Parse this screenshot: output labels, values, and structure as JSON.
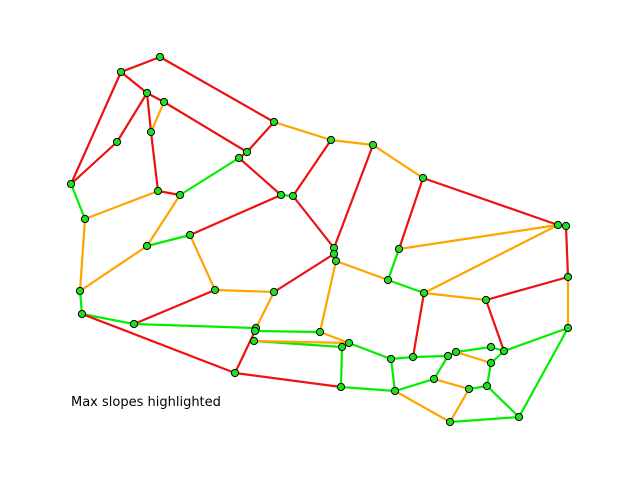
{
  "caption": "Max slopes highlighted",
  "colors": {
    "red": "#ee1111",
    "orange": "#ffa500",
    "green": "#00ee00",
    "node_fill": "#22dd22",
    "node_stroke": "#000000",
    "background": "#ffffff"
  },
  "graph": {
    "nodes": [
      [
        "A",
        160,
        57
      ],
      [
        "B",
        121,
        72
      ],
      [
        "C",
        147,
        93
      ],
      [
        "D",
        164,
        102
      ],
      [
        "E",
        151,
        132
      ],
      [
        "F",
        117,
        142
      ],
      [
        "G",
        71,
        184
      ],
      [
        "H",
        158,
        191
      ],
      [
        "I",
        180,
        195
      ],
      [
        "J",
        85,
        219
      ],
      [
        "K",
        274,
        122
      ],
      [
        "L",
        247,
        152
      ],
      [
        "M",
        239,
        158
      ],
      [
        "N",
        281,
        195
      ],
      [
        "O",
        293,
        196
      ],
      [
        "P",
        331,
        140
      ],
      [
        "Q",
        373,
        145
      ],
      [
        "R",
        423,
        178
      ],
      [
        "S",
        190,
        235
      ],
      [
        "T",
        147,
        246
      ],
      [
        "U",
        334,
        248
      ],
      [
        "V",
        334,
        254
      ],
      [
        "W",
        336,
        261
      ],
      [
        "X",
        399,
        249
      ],
      [
        "Y",
        388,
        280
      ],
      [
        "Z",
        558,
        225
      ],
      [
        "AA",
        566,
        226
      ],
      [
        "AB",
        568,
        277
      ],
      [
        "AC",
        424,
        293
      ],
      [
        "AD",
        486,
        300
      ],
      [
        "AE",
        80,
        291
      ],
      [
        "AF",
        82,
        314
      ],
      [
        "AG",
        215,
        290
      ],
      [
        "AH",
        274,
        292
      ],
      [
        "AI",
        134,
        324
      ],
      [
        "AJ",
        256,
        328
      ],
      [
        "AK",
        255,
        331
      ],
      [
        "AL",
        320,
        332
      ],
      [
        "AM",
        254,
        341
      ],
      [
        "AN",
        342,
        347
      ],
      [
        "AO",
        349,
        343
      ],
      [
        "AP",
        391,
        359
      ],
      [
        "AQ",
        413,
        357
      ],
      [
        "AR",
        448,
        356
      ],
      [
        "AS",
        456,
        352
      ],
      [
        "AT",
        491,
        347
      ],
      [
        "AU",
        504,
        351
      ],
      [
        "AV",
        491,
        363
      ],
      [
        "AW",
        568,
        328
      ],
      [
        "AX",
        235,
        373
      ],
      [
        "AY",
        341,
        387
      ],
      [
        "AZ",
        395,
        391
      ],
      [
        "BA",
        434,
        379
      ],
      [
        "BB",
        469,
        389
      ],
      [
        "BC",
        487,
        386
      ],
      [
        "BD",
        450,
        422
      ],
      [
        "BE",
        519,
        417
      ]
    ],
    "edges": [
      [
        "A",
        "B",
        "red"
      ],
      [
        "A",
        "K",
        "red"
      ],
      [
        "B",
        "C",
        "red"
      ],
      [
        "B",
        "G",
        "red"
      ],
      [
        "C",
        "D",
        "red"
      ],
      [
        "C",
        "E",
        "red"
      ],
      [
        "C",
        "F",
        "red"
      ],
      [
        "D",
        "E",
        "orange"
      ],
      [
        "D",
        "L",
        "red"
      ],
      [
        "E",
        "H",
        "red"
      ],
      [
        "F",
        "G",
        "red"
      ],
      [
        "G",
        "J",
        "green"
      ],
      [
        "H",
        "I",
        "red"
      ],
      [
        "I",
        "T",
        "orange"
      ],
      [
        "I",
        "M",
        "green"
      ],
      [
        "J",
        "H",
        "orange"
      ],
      [
        "J",
        "AE",
        "orange"
      ],
      [
        "K",
        "L",
        "red"
      ],
      [
        "K",
        "P",
        "orange"
      ],
      [
        "L",
        "M",
        "red"
      ],
      [
        "M",
        "N",
        "red"
      ],
      [
        "N",
        "O",
        "green"
      ],
      [
        "N",
        "S",
        "red"
      ],
      [
        "O",
        "P",
        "red"
      ],
      [
        "O",
        "U",
        "red"
      ],
      [
        "P",
        "Q",
        "orange"
      ],
      [
        "Q",
        "U",
        "red"
      ],
      [
        "Q",
        "R",
        "orange"
      ],
      [
        "R",
        "X",
        "red"
      ],
      [
        "R",
        "Z",
        "red"
      ],
      [
        "S",
        "T",
        "green"
      ],
      [
        "S",
        "AG",
        "orange"
      ],
      [
        "T",
        "AE",
        "orange"
      ],
      [
        "U",
        "V",
        "green"
      ],
      [
        "V",
        "AH",
        "red"
      ],
      [
        "V",
        "W",
        "orange"
      ],
      [
        "W",
        "Y",
        "orange"
      ],
      [
        "W",
        "AL",
        "orange"
      ],
      [
        "X",
        "Z",
        "orange"
      ],
      [
        "X",
        "Y",
        "green"
      ],
      [
        "Y",
        "AC",
        "green"
      ],
      [
        "Z",
        "AA",
        "green"
      ],
      [
        "Z",
        "AC",
        "orange"
      ],
      [
        "AA",
        "AB",
        "red"
      ],
      [
        "AB",
        "AD",
        "red"
      ],
      [
        "AB",
        "AW",
        "orange"
      ],
      [
        "AC",
        "AD",
        "orange"
      ],
      [
        "AC",
        "AQ",
        "red"
      ],
      [
        "AD",
        "AU",
        "red"
      ],
      [
        "AE",
        "AF",
        "green"
      ],
      [
        "AF",
        "AI",
        "green"
      ],
      [
        "AF",
        "AX",
        "red"
      ],
      [
        "AG",
        "AH",
        "orange"
      ],
      [
        "AG",
        "AI",
        "red"
      ],
      [
        "AH",
        "AJ",
        "orange"
      ],
      [
        "AI",
        "AJ",
        "green"
      ],
      [
        "AJ",
        "AK",
        "green"
      ],
      [
        "AK",
        "AL",
        "green"
      ],
      [
        "AK",
        "AX",
        "red"
      ],
      [
        "AL",
        "AO",
        "orange"
      ],
      [
        "AM",
        "AN",
        "green"
      ],
      [
        "AM",
        "AO",
        "orange"
      ],
      [
        "AN",
        "AY",
        "green"
      ],
      [
        "AO",
        "AP",
        "green"
      ],
      [
        "AP",
        "AQ",
        "green"
      ],
      [
        "AP",
        "AZ",
        "green"
      ],
      [
        "AQ",
        "AR",
        "green"
      ],
      [
        "AR",
        "AS",
        "green"
      ],
      [
        "AR",
        "BA",
        "green"
      ],
      [
        "AS",
        "AT",
        "green"
      ],
      [
        "AS",
        "AV",
        "orange"
      ],
      [
        "AT",
        "AU",
        "green"
      ],
      [
        "AU",
        "AW",
        "green"
      ],
      [
        "AU",
        "AV",
        "green"
      ],
      [
        "AV",
        "BC",
        "green"
      ],
      [
        "BA",
        "BB",
        "orange"
      ],
      [
        "BB",
        "BC",
        "green"
      ],
      [
        "BB",
        "BD",
        "orange"
      ],
      [
        "BC",
        "BE",
        "green"
      ],
      [
        "BD",
        "BE",
        "green"
      ],
      [
        "AW",
        "BE",
        "green"
      ],
      [
        "AY",
        "AZ",
        "green"
      ],
      [
        "AZ",
        "BA",
        "green"
      ],
      [
        "AZ",
        "BD",
        "orange"
      ],
      [
        "AX",
        "AY",
        "red"
      ]
    ]
  }
}
